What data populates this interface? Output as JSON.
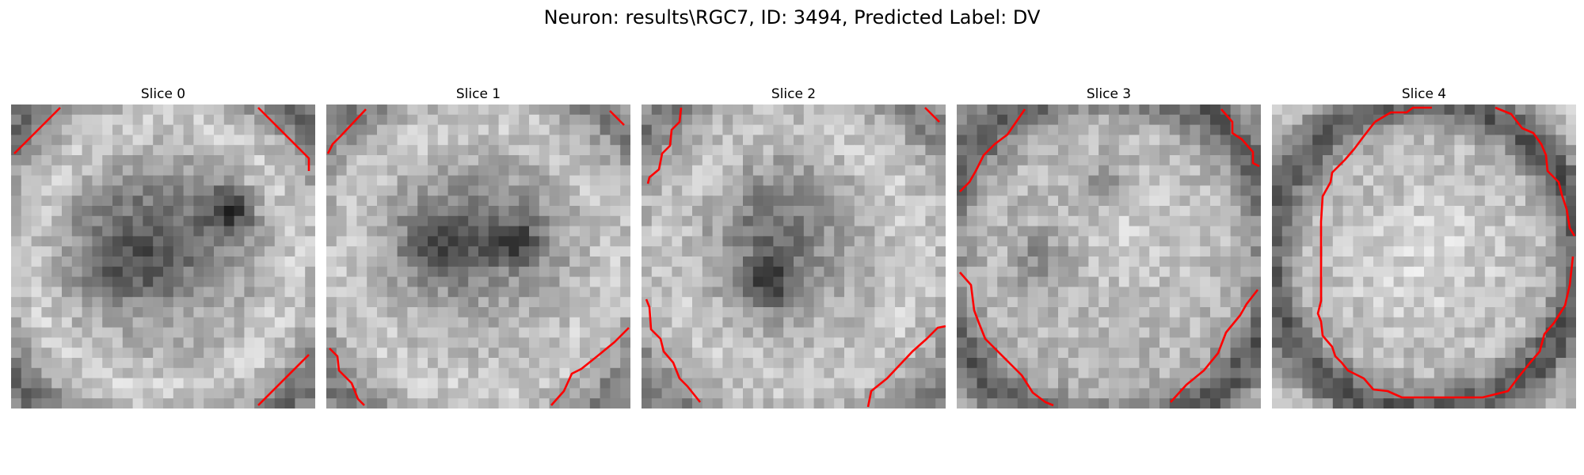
{
  "title": "Neuron: results\\RGC7, ID: 3494, Predicted Label: DV",
  "colors": {
    "background": "#ffffff",
    "boundary": "#ff0000",
    "colormap": "gray"
  },
  "slices": [
    {
      "title": "Slice 0"
    },
    {
      "title": "Slice 1"
    },
    {
      "title": "Slice 2"
    },
    {
      "title": "Slice 3"
    },
    {
      "title": "Slice 4"
    }
  ]
}
